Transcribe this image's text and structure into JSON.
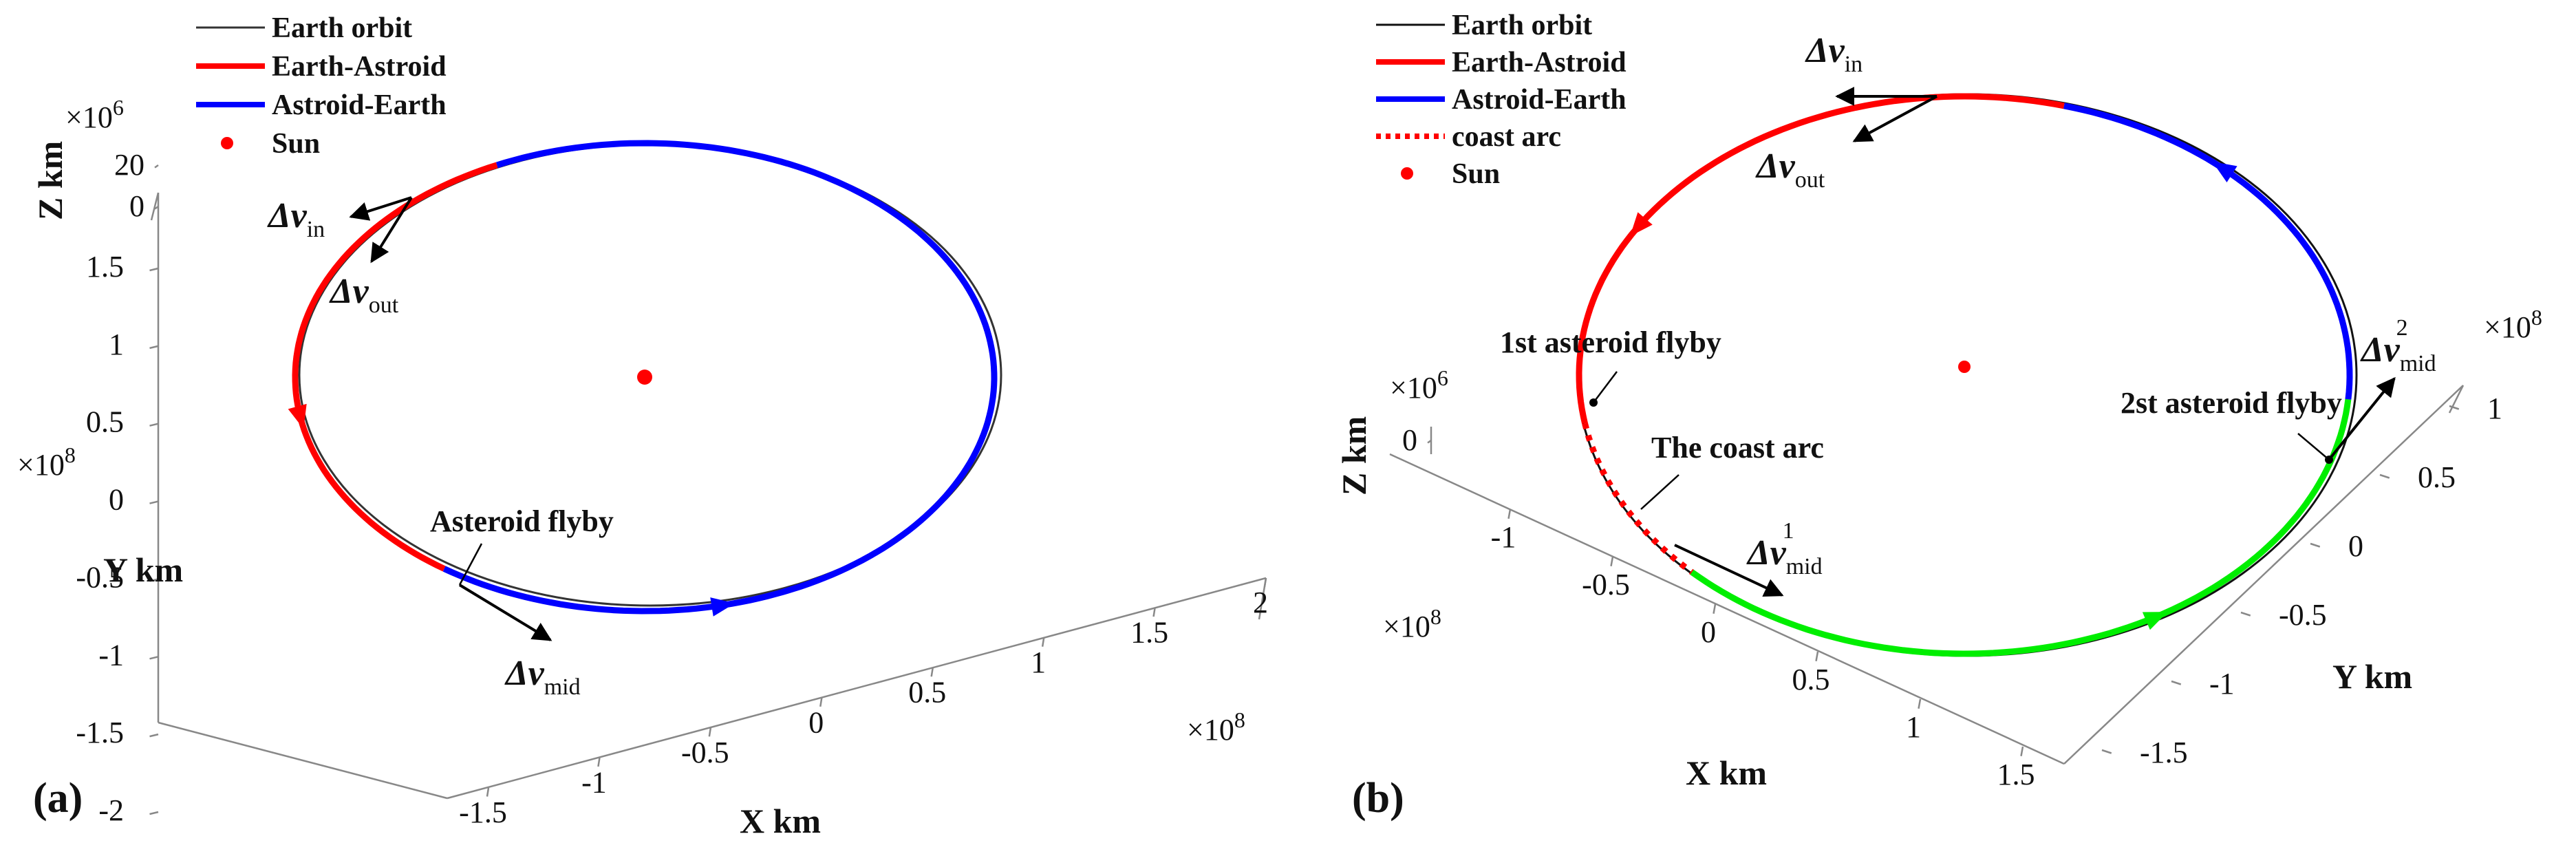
{
  "chart_data": [
    {
      "type": "line",
      "panel_label": "(a)",
      "legend": {
        "placement": "top-left",
        "items": [
          {
            "label": "Earth orbit",
            "color": "#333333",
            "style": "thin"
          },
          {
            "label": "Earth-Astroid",
            "color": "#ff0000",
            "style": "solid"
          },
          {
            "label": "Astroid-Earth",
            "color": "#0000ff",
            "style": "solid"
          },
          {
            "label": "Sun",
            "color": "#ff0000",
            "style": "marker"
          }
        ]
      },
      "axes": {
        "x": {
          "label": "X km",
          "multiplier": "×10",
          "exponent": "8",
          "ticks": [
            "-1.5",
            "-1",
            "-0.5",
            "0",
            "0.5",
            "1",
            "1.5",
            "2"
          ],
          "range": [
            -1.5,
            2
          ]
        },
        "y": {
          "label": "Y km",
          "multiplier": "×10",
          "exponent": "8",
          "ticks": [
            "-2",
            "-1.5",
            "-1",
            "-0.5",
            "0",
            "0.5",
            "1",
            "1.5"
          ],
          "range": [
            -2,
            1.5
          ]
        },
        "z": {
          "label": "Z km",
          "multiplier": "×10",
          "exponent": "6",
          "ticks": [
            "0",
            "20"
          ],
          "range": [
            0,
            20
          ]
        }
      },
      "series": [
        {
          "name": "Earth orbit",
          "shape": "ellipse",
          "center": [
            0,
            0,
            0
          ],
          "semi_axis": 1.5,
          "units": "1e8 km"
        },
        {
          "name": "Earth-Astroid",
          "arc_deg": [
            115,
            235
          ],
          "direction": "counter-clockwise"
        },
        {
          "name": "Astroid-Earth",
          "arc_deg": [
            235,
            475
          ],
          "direction": "counter-clockwise"
        },
        {
          "name": "Sun",
          "point": [
            0,
            0,
            0
          ]
        }
      ],
      "annotations": {
        "flyby": "Asteroid flyby",
        "dv_in": {
          "symbol": "Δv",
          "sub": "in"
        },
        "dv_out": {
          "symbol": "Δv",
          "sub": "out"
        },
        "dv_mid": {
          "symbol": "Δv",
          "sub": "mid"
        }
      }
    },
    {
      "type": "line",
      "panel_label": "(b)",
      "legend": {
        "placement": "top-left",
        "items": [
          {
            "label": "Earth orbit",
            "color": "#111111",
            "style": "thin"
          },
          {
            "label": "Earth-Astroid",
            "color": "#ff0000",
            "style": "solid"
          },
          {
            "label": "Astroid-Earth",
            "color": "#0000ff",
            "style": "solid"
          },
          {
            "label": "coast arc",
            "color": "#ff0000",
            "style": "dotted"
          },
          {
            "label": "Sun",
            "color": "#ff0000",
            "style": "marker"
          }
        ]
      },
      "axes": {
        "x": {
          "label": "X km",
          "multiplier": "×10",
          "exponent": "8",
          "ticks": [
            "-1",
            "-0.5",
            "0",
            "0.5",
            "1",
            "1.5"
          ],
          "range": [
            -1,
            1.5
          ]
        },
        "y": {
          "label": "Y km",
          "multiplier": "×10",
          "exponent": "8",
          "ticks": [
            "-1.5",
            "-1",
            "-0.5",
            "0",
            "0.5",
            "1"
          ],
          "range": [
            -1.5,
            1
          ]
        },
        "z": {
          "label": "Z km",
          "multiplier": "×10",
          "exponent": "6",
          "ticks": [
            "0"
          ],
          "range": [
            0,
            0
          ]
        }
      },
      "series": [
        {
          "name": "Earth orbit",
          "shape": "ellipse",
          "center": [
            0,
            0,
            0
          ]
        },
        {
          "name": "Earth-Astroid",
          "arc_deg": [
            75,
            190
          ]
        },
        {
          "name": "coast arc",
          "arc_deg": [
            190,
            225
          ]
        },
        {
          "name": "Earth-Astroid (second leg)",
          "color": "#00ee00",
          "arc_deg": [
            225,
            355
          ]
        },
        {
          "name": "Astroid-Earth",
          "arc_deg": [
            355,
            435
          ]
        },
        {
          "name": "Sun",
          "point": [
            0,
            0,
            0
          ]
        }
      ],
      "annotations": {
        "flyby1": "1st asteroid flyby",
        "flyby2": "2st asteroid flyby",
        "coast": "The coast arc",
        "dv_in": {
          "symbol": "Δv",
          "sub": "in"
        },
        "dv_out": {
          "symbol": "Δv",
          "sub": "out"
        },
        "dv_mid1": {
          "symbol": "Δv",
          "sub": "mid",
          "sup": "1"
        },
        "dv_mid2": {
          "symbol": "Δv",
          "sub": "mid",
          "sup": "2"
        }
      }
    }
  ]
}
